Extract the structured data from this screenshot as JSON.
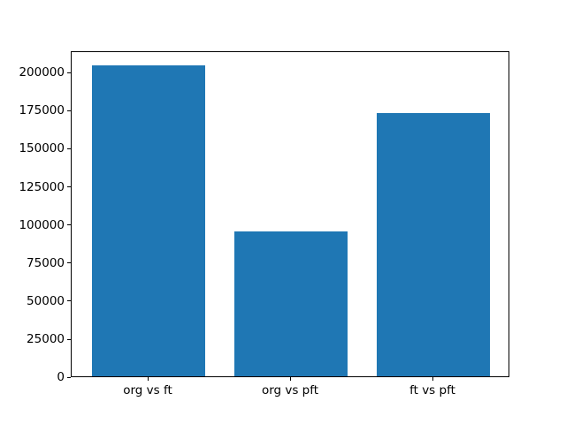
{
  "chart_data": {
    "type": "bar",
    "title": "",
    "xlabel": "",
    "ylabel": "",
    "categories": [
      "org vs ft",
      "org vs pft",
      "ft vs pft"
    ],
    "values": [
      204000,
      95000,
      173000
    ],
    "yticks": [
      0,
      25000,
      50000,
      75000,
      100000,
      125000,
      150000,
      175000,
      200000
    ],
    "ytick_labels": [
      "0",
      "25000",
      "50000",
      "75000",
      "100000",
      "125000",
      "150000",
      "175000",
      "200000"
    ],
    "ylim": [
      0,
      214200
    ],
    "xlim": [
      -0.54,
      2.54
    ],
    "bar_width": 0.8,
    "grid": false,
    "legend": false,
    "bar_color": "#1f77b4",
    "axes_color": "#000000",
    "text_color": "#000000",
    "background_color": "#ffffff"
  }
}
